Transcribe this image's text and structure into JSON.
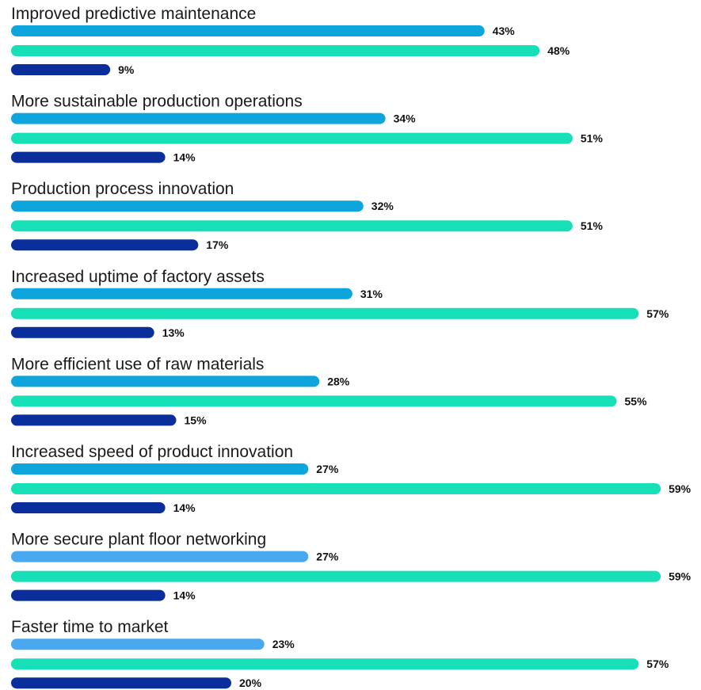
{
  "chart_data": {
    "type": "bar",
    "orientation": "horizontal",
    "value_unit": "%",
    "categories": [
      "Improved predictive maintenance",
      "More sustainable production operations",
      "Production process innovation",
      "Increased uptime of factory assets",
      "More efficient use of raw materials",
      "Increased speed of product innovation",
      "More secure plant floor networking",
      "Faster time to market"
    ],
    "series": [
      {
        "values": [
          43,
          34,
          32,
          31,
          28,
          27,
          27,
          23
        ]
      },
      {
        "values": [
          48,
          51,
          51,
          57,
          55,
          59,
          59,
          57
        ]
      },
      {
        "values": [
          9,
          14,
          17,
          13,
          15,
          14,
          14,
          20
        ]
      }
    ],
    "value_labels": [
      [
        "43%",
        "34%",
        "32%",
        "31%",
        "28%",
        "27%",
        "27%",
        "23%"
      ],
      [
        "48%",
        "51%",
        "51%",
        "57%",
        "55%",
        "59%",
        "59%",
        "57%"
      ],
      [
        "9%",
        "14%",
        "17%",
        "13%",
        "15%",
        "14%",
        "14%",
        "20%"
      ]
    ],
    "colors": {
      "series1": "#0ea5dc",
      "series1_alt": "#4aa8f0",
      "series2": "#17dfb7",
      "series3": "#0a2f9c"
    },
    "grid": false,
    "legend": "none"
  }
}
